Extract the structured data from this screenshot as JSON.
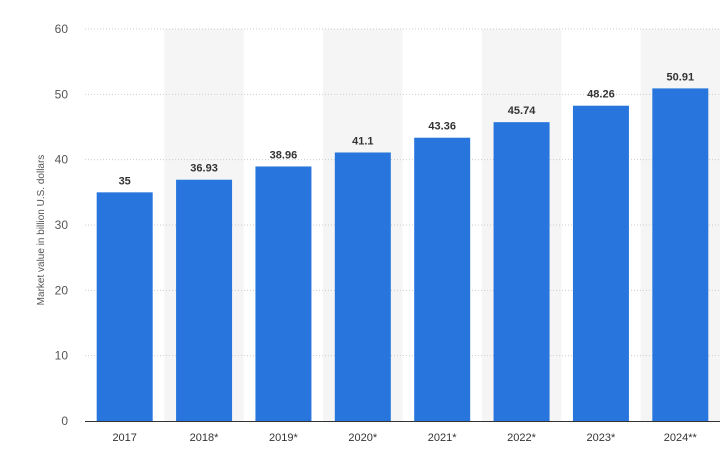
{
  "chart_data": {
    "type": "bar",
    "categories": [
      "2017",
      "2018*",
      "2019*",
      "2020*",
      "2021*",
      "2022*",
      "2023*",
      "2024**"
    ],
    "values": [
      35,
      36.93,
      38.96,
      41.1,
      43.36,
      45.74,
      48.26,
      50.91
    ],
    "value_labels": [
      "35",
      "36.93",
      "38.96",
      "41.1",
      "43.36",
      "45.74",
      "48.26",
      "50.91"
    ],
    "title": "",
    "xlabel": "",
    "ylabel": "Market value in billion U.S. dollars",
    "ylim": [
      0,
      60
    ],
    "yticks": [
      0,
      10,
      20,
      30,
      40,
      50,
      60
    ],
    "grid": true,
    "legend": "none",
    "colors": {
      "bar": "#2876dd",
      "band": "#f5f5f5",
      "grid": "#cccccc",
      "axis": "#333333"
    }
  }
}
